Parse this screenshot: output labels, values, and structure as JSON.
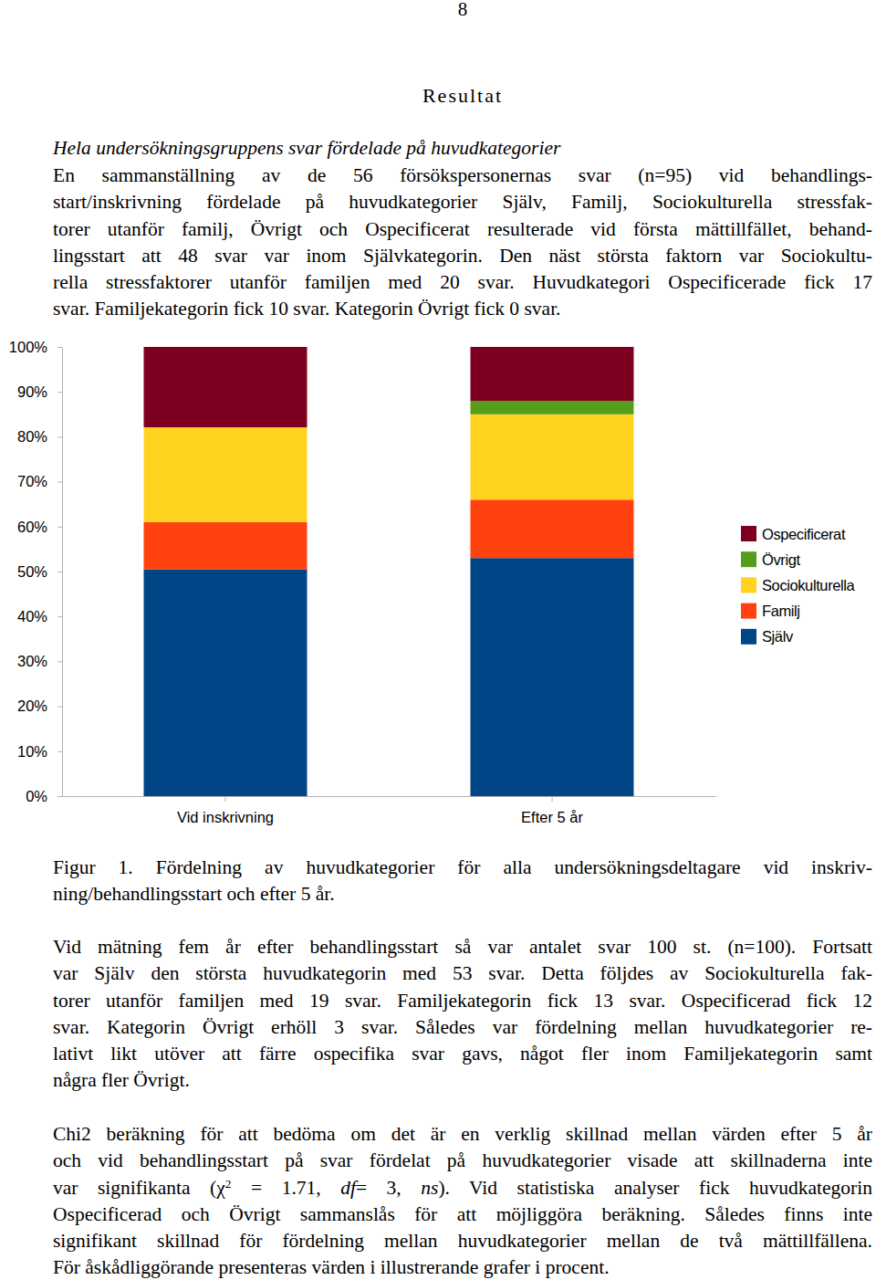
{
  "page_number": "8",
  "heading": "Resultat",
  "subheading": "Hela undersökningsgruppens svar fördelade på huvudkategorier",
  "text_blocks": [
    {
      "lines": [
        "En sammanställning av de 56 försökspersonernas svar (n=95) vid behandlings-",
        "start/inskrivning fördelade på huvudkategorier Själv, Familj, Sociokulturella stressfak-",
        "torer utanför familj, Övrigt och Ospecificerat resulterade vid första mättillfället, behand-",
        "lingsstart att 48 svar var inom Självkategorin. Den näst största faktorn var Sociokultu-",
        "rella stressfaktorer utanför familjen med 20 svar. Huvudkategori Ospecificerade fick 17",
        "svar. Familjekategorin fick 10 svar. Kategorin Övrigt fick 0 svar."
      ]
    },
    {
      "lines": [
        "Figur 1. Fördelning av huvudkategorier för alla undersökningsdeltagare vid inskriv-",
        "ning/behandlingsstart och efter 5 år."
      ]
    },
    {
      "lines": [
        "Vid mätning fem år efter behandlingsstart så var antalet svar 100 st. (n=100). Fortsatt",
        "var Själv den största huvudkategorin med 53 svar. Detta följdes av Sociokulturella fak-",
        "torer utanför familjen med 19 svar. Familjekategorin fick 13 svar. Ospecificerad fick 12",
        "svar. Kategorin Övrigt erhöll 3 svar. Således var fördelning mellan huvudkategorier re-",
        "lativt likt utöver att färre ospecifika svar gavs, något fler inom Familjekategorin samt",
        "några fler Övrigt."
      ]
    },
    {
      "lines": [
        "Chi2 beräkning för att bedöma om det är en verklig skillnad mellan värden efter 5 år",
        "och vid behandlingsstart på svar fördelat på huvudkategorier visade att skillnaderna inte",
        [
          "var signifikanta (χ",
          {
            "text": "2",
            "format": "sup"
          },
          " = 1.71, ",
          {
            "text": "df",
            "format": "italic"
          },
          "= 3, ",
          {
            "text": "ns",
            "format": "italic"
          },
          "). Vid statistiska analyser fick huvudkategorin"
        ],
        "Ospecificerad och Övrigt sammanslås för att möjliggöra beräkning. Således finns inte",
        "signifikant skillnad för fördelning mellan huvudkategorier mellan de två mättillfällena.",
        "För åskådliggörande presenteras värden i illustrerande grafer i procent."
      ]
    }
  ],
  "chart_data": {
    "type": "bar",
    "stacked": true,
    "legend": "right",
    "categories": [
      "Vid inskrivning",
      "Efter 5 år"
    ],
    "series": [
      {
        "name": "Själv",
        "color": "#004586",
        "values": [
          50.5,
          53
        ]
      },
      {
        "name": "Familj",
        "color": "#ff420e",
        "values": [
          10.5,
          13
        ]
      },
      {
        "name": "Sociokulturella",
        "color": "#ffd320",
        "values": [
          21.1,
          19
        ]
      },
      {
        "name": "Övrigt",
        "color": "#579d1c",
        "values": [
          0,
          3
        ]
      },
      {
        "name": "Ospecificerat",
        "color": "#7e0021",
        "values": [
          17.9,
          12
        ]
      }
    ],
    "ylim": [
      0,
      100
    ],
    "yticks": [
      {
        "value": 0,
        "label": "0%"
      },
      {
        "value": 10,
        "label": "10%"
      },
      {
        "value": 20,
        "label": "20%"
      },
      {
        "value": 30,
        "label": "30%"
      },
      {
        "value": 40,
        "label": "40%"
      },
      {
        "value": 50,
        "label": "50%"
      },
      {
        "value": 60,
        "label": "60%"
      },
      {
        "value": 70,
        "label": "70%"
      },
      {
        "value": 80,
        "label": "80%"
      },
      {
        "value": 90,
        "label": "90%"
      },
      {
        "value": 100,
        "label": "100%"
      }
    ]
  }
}
